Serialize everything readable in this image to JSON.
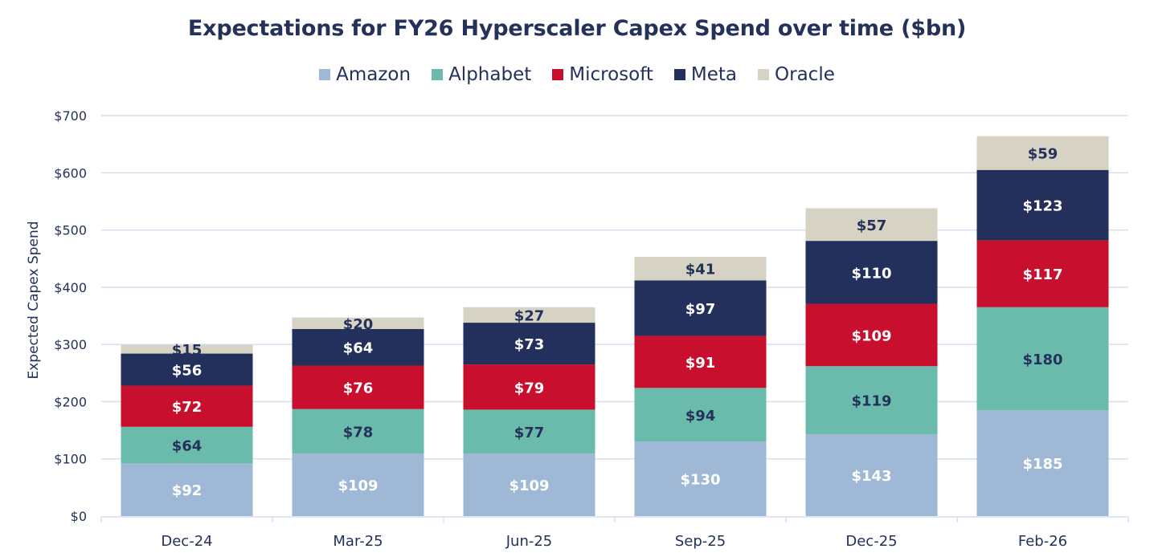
{
  "chart_data": {
    "type": "bar",
    "stacked": true,
    "title": "Expectations for FY26 Hyperscaler Capex Spend over time ($bn)",
    "xlabel": "",
    "ylabel": "Expected Capex Spend",
    "ylim": [
      0,
      700
    ],
    "yticks": [
      0,
      100,
      200,
      300,
      400,
      500,
      600,
      700
    ],
    "ytick_labels": [
      "$0",
      "$100",
      "$200",
      "$300",
      "$400",
      "$500",
      "$600",
      "$700"
    ],
    "grid": true,
    "legend_position": "top-center",
    "categories": [
      "Dec-24",
      "Mar-25",
      "Jun-25",
      "Sep-25",
      "Dec-25",
      "Feb-26"
    ],
    "series": [
      {
        "name": "Amazon",
        "color": "#9fb8d6",
        "label_color": "#ffffff",
        "values": [
          92,
          109,
          109,
          130,
          143,
          185
        ]
      },
      {
        "name": "Alphabet",
        "color": "#6bbbad",
        "label_color": "#243159",
        "values": [
          64,
          78,
          77,
          94,
          119,
          180
        ]
      },
      {
        "name": "Microsoft",
        "color": "#c8102e",
        "label_color": "#ffffff",
        "values": [
          72,
          76,
          79,
          91,
          109,
          117
        ]
      },
      {
        "name": "Meta",
        "color": "#22305b",
        "label_color": "#ffffff",
        "values": [
          56,
          64,
          73,
          97,
          110,
          123
        ]
      },
      {
        "name": "Oracle",
        "color": "#d6d2c4",
        "label_color": "#243159",
        "values": [
          15,
          20,
          27,
          41,
          57,
          59
        ]
      }
    ],
    "data_labels": [
      [
        "$92",
        "$109",
        "$109",
        "$130",
        "$143",
        "$185"
      ],
      [
        "$64",
        "$78",
        "$77",
        "$94",
        "$119",
        "$180"
      ],
      [
        "$72",
        "$76",
        "$79",
        "$91",
        "$109",
        "$117"
      ],
      [
        "$56",
        "$64",
        "$73",
        "$97",
        "$110",
        "$123"
      ],
      [
        "$15",
        "$20",
        "$27",
        "$41",
        "$57",
        "$59"
      ]
    ]
  }
}
